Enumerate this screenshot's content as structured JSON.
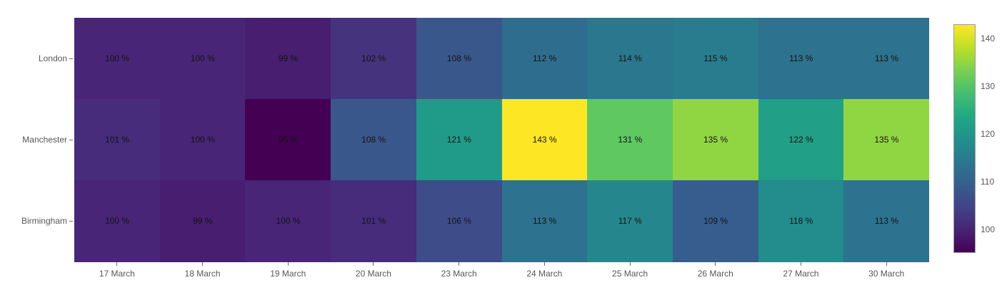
{
  "chart_data": {
    "type": "heatmap",
    "title": "",
    "xlabel": "",
    "ylabel": "",
    "x_categories": [
      "17 March",
      "18 March",
      "19 March",
      "20 March",
      "23 March",
      "24 March",
      "25 March",
      "26 March",
      "27 March",
      "30 March"
    ],
    "y_categories": [
      "London",
      "Manchester",
      "Birmingham"
    ],
    "rows": [
      {
        "name": "London",
        "values": [
          100,
          100,
          99,
          102,
          108,
          112,
          114,
          115,
          113,
          113
        ],
        "labels": [
          "100 %",
          "100 %",
          "99 %",
          "102 %",
          "108 %",
          "112 %",
          "114 %",
          "115 %",
          "113 %",
          "113 %"
        ]
      },
      {
        "name": "Manchester",
        "values": [
          101,
          100,
          95,
          108,
          121,
          143,
          131,
          135,
          122,
          135
        ],
        "labels": [
          "101 %",
          "100 %",
          "95 %",
          "108 %",
          "121 %",
          "143 %",
          "131 %",
          "135 %",
          "122 %",
          "135 %"
        ]
      },
      {
        "name": "Birmingham",
        "values": [
          100,
          99,
          100,
          101,
          106,
          113,
          117,
          109,
          118,
          113
        ],
        "labels": [
          "100 %",
          "99 %",
          "100 %",
          "101 %",
          "106 %",
          "113 %",
          "117 %",
          "109 %",
          "118 %",
          "113 %"
        ]
      }
    ],
    "zmin": 95,
    "zmax": 143,
    "colorscale": "viridis",
    "colorbar_ticks": [
      140,
      130,
      120,
      110,
      100
    ],
    "legend_position": "right",
    "grid": false
  },
  "colors": {
    "background": "#ffffff",
    "axis_label": "#575757",
    "tick_mark": "#6b6b6b",
    "cell_text": "#141414",
    "colorbar_border": "#9c9c9c",
    "viridis_stops": [
      "#440154",
      "#482475",
      "#414487",
      "#355f8d",
      "#2a788e",
      "#21918c",
      "#22a884",
      "#44bf70",
      "#7ad151",
      "#bddf26",
      "#fde725"
    ]
  }
}
